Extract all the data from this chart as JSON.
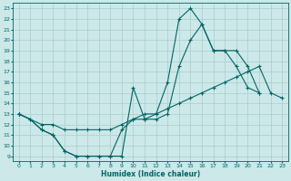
{
  "title": "",
  "xlabel": "Humidex (Indice chaleur)",
  "bg_color": "#cce8e8",
  "line_color": "#006666",
  "grid_color": "#aacccc",
  "xlim": [
    -0.5,
    23.5
  ],
  "ylim": [
    8.5,
    23.5
  ],
  "xticks": [
    0,
    1,
    2,
    3,
    4,
    5,
    6,
    7,
    8,
    9,
    10,
    11,
    12,
    13,
    14,
    15,
    16,
    17,
    18,
    19,
    20,
    21,
    22,
    23
  ],
  "yticks": [
    9,
    10,
    11,
    12,
    13,
    14,
    15,
    16,
    17,
    18,
    19,
    20,
    21,
    22,
    23
  ],
  "line1_x": [
    0,
    1,
    2,
    3,
    4,
    5,
    6,
    7,
    8,
    9,
    10,
    11,
    12,
    13,
    14,
    15,
    16,
    17,
    18,
    19,
    20,
    21
  ],
  "line1_y": [
    13,
    12.5,
    11.5,
    11,
    9.5,
    9,
    9,
    9,
    9,
    9,
    15.5,
    12.5,
    13,
    16,
    22,
    23,
    21.5,
    19,
    19,
    17.5,
    15.5,
    15
  ],
  "line2_x": [
    0,
    1,
    2,
    3,
    4,
    5,
    6,
    7,
    8,
    9,
    10,
    11,
    12,
    13,
    14,
    15,
    16,
    17,
    18,
    19,
    20,
    21
  ],
  "line2_y": [
    13,
    12.5,
    11.5,
    11,
    9.5,
    9,
    9,
    9,
    9,
    11.5,
    12.5,
    12.5,
    12.5,
    13,
    17.5,
    20,
    21.5,
    19,
    19,
    19,
    17.5,
    15
  ],
  "line3_x": [
    0,
    2,
    3,
    4,
    5,
    6,
    7,
    8,
    9,
    10,
    11,
    12,
    13,
    14,
    15,
    16,
    17,
    18,
    19,
    20,
    21,
    22,
    23
  ],
  "line3_y": [
    13,
    12,
    12,
    11.5,
    11.5,
    11.5,
    11.5,
    11.5,
    12,
    12.5,
    13,
    13,
    13.5,
    14,
    14.5,
    15,
    15.5,
    16,
    16.5,
    17,
    17.5,
    15,
    14.5
  ],
  "marker": "+",
  "markersize": 3,
  "linewidth": 0.8
}
